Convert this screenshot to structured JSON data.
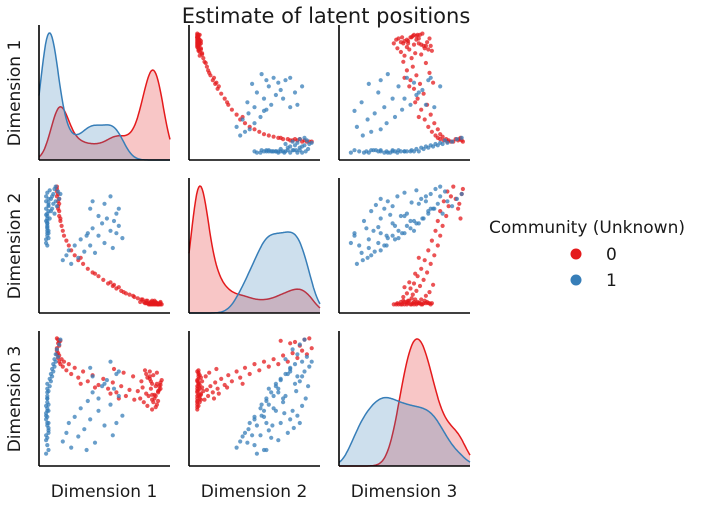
{
  "chart_data": {
    "type": "scatter",
    "title": "Estimate of latent positions",
    "variables": [
      "Dimension 1",
      "Dimension 2",
      "Dimension 3"
    ],
    "legend": {
      "title": "Community (Unknown)",
      "entries": [
        {
          "label": "0",
          "color": "#e41a1c"
        },
        {
          "label": "1",
          "color": "#377eb8"
        }
      ],
      "placement": "right"
    },
    "diagonal": "kde",
    "off_diagonal": "scatter",
    "axis_ranges": {
      "Dimension 1": [
        -0.05,
        1.05
      ],
      "Dimension 2": [
        -0.05,
        1.05
      ],
      "Dimension 3": [
        -0.05,
        1.05
      ]
    },
    "grid": false,
    "ticks": "none",
    "series": [
      {
        "name": "0",
        "color": "#e41a1c",
        "points": [
          [
            0.95,
            0.02,
            0.56
          ],
          [
            0.97,
            0.03,
            0.63
          ],
          [
            0.9,
            0.02,
            0.41
          ],
          [
            0.93,
            0.04,
            0.52
          ],
          [
            0.88,
            0.03,
            0.68
          ],
          [
            0.96,
            0.02,
            0.6
          ],
          [
            0.85,
            0.05,
            0.54
          ],
          [
            0.91,
            0.02,
            0.47
          ],
          [
            0.94,
            0.03,
            0.71
          ],
          [
            0.89,
            0.04,
            0.58
          ],
          [
            0.98,
            0.02,
            0.65
          ],
          [
            0.86,
            0.03,
            0.44
          ],
          [
            0.92,
            0.02,
            0.5
          ],
          [
            0.97,
            0.04,
            0.61
          ],
          [
            0.84,
            0.03,
            0.73
          ],
          [
            0.9,
            0.05,
            0.49
          ],
          [
            0.95,
            0.02,
            0.55
          ],
          [
            0.88,
            0.03,
            0.66
          ],
          [
            0.93,
            0.02,
            0.43
          ],
          [
            0.82,
            0.06,
            0.59
          ],
          [
            0.94,
            0.03,
            0.62
          ],
          [
            0.87,
            0.02,
            0.52
          ],
          [
            0.91,
            0.04,
            0.69
          ],
          [
            0.96,
            0.03,
            0.57
          ],
          [
            0.83,
            0.04,
            0.47
          ],
          [
            0.89,
            0.02,
            0.64
          ],
          [
            0.92,
            0.05,
            0.53
          ],
          [
            0.85,
            0.03,
            0.7
          ],
          [
            0.97,
            0.02,
            0.58
          ],
          [
            0.8,
            0.04,
            0.5
          ],
          [
            0.9,
            0.03,
            0.62
          ],
          [
            0.94,
            0.02,
            0.45
          ],
          [
            0.86,
            0.05,
            0.67
          ],
          [
            0.78,
            0.07,
            0.56
          ],
          [
            0.93,
            0.03,
            0.6
          ],
          [
            0.75,
            0.08,
            0.49
          ],
          [
            0.88,
            0.02,
            0.72
          ],
          [
            0.71,
            0.1,
            0.57
          ],
          [
            0.81,
            0.06,
            0.64
          ],
          [
            0.68,
            0.11,
            0.52
          ],
          [
            0.95,
            0.02,
            0.48
          ],
          [
            0.64,
            0.13,
            0.6
          ],
          [
            0.74,
            0.09,
            0.68
          ],
          [
            0.6,
            0.15,
            0.55
          ],
          [
            0.9,
            0.03,
            0.53
          ],
          [
            0.57,
            0.17,
            0.63
          ],
          [
            0.66,
            0.12,
            0.71
          ],
          [
            0.53,
            0.19,
            0.58
          ],
          [
            0.62,
            0.16,
            0.5
          ],
          [
            0.49,
            0.22,
            0.66
          ],
          [
            0.58,
            0.18,
            0.74
          ],
          [
            0.45,
            0.25,
            0.61
          ],
          [
            0.4,
            0.28,
            0.69
          ],
          [
            0.55,
            0.2,
            0.54
          ],
          [
            0.36,
            0.31,
            0.64
          ],
          [
            0.32,
            0.35,
            0.72
          ],
          [
            0.28,
            0.38,
            0.67
          ],
          [
            0.42,
            0.27,
            0.59
          ],
          [
            0.25,
            0.42,
            0.75
          ],
          [
            0.22,
            0.46,
            0.7
          ],
          [
            0.2,
            0.5,
            0.78
          ],
          [
            0.18,
            0.54,
            0.73
          ],
          [
            0.3,
            0.4,
            0.62
          ],
          [
            0.16,
            0.58,
            0.8
          ],
          [
            0.15,
            0.62,
            0.76
          ],
          [
            0.14,
            0.66,
            0.82
          ],
          [
            0.13,
            0.7,
            0.78
          ],
          [
            0.12,
            0.74,
            0.85
          ],
          [
            0.12,
            0.78,
            0.8
          ],
          [
            0.11,
            0.82,
            0.87
          ],
          [
            0.11,
            0.86,
            0.83
          ],
          [
            0.1,
            0.9,
            0.89
          ],
          [
            0.1,
            0.94,
            0.86
          ],
          [
            0.1,
            0.98,
            0.91
          ],
          [
            0.12,
            0.88,
            0.93
          ],
          [
            0.11,
            0.8,
            0.95
          ],
          [
            0.13,
            0.72,
            0.97
          ],
          [
            0.1,
            0.96,
            0.99
          ],
          [
            0.12,
            0.84,
            0.96
          ],
          [
            0.11,
            0.92,
            0.98
          ]
        ]
      },
      {
        "name": "1",
        "color": "#377eb8",
        "points": [
          [
            0.02,
            0.5,
            0.12
          ],
          [
            0.01,
            0.55,
            0.2
          ],
          [
            0.03,
            0.6,
            0.08
          ],
          [
            0.02,
            0.65,
            0.28
          ],
          [
            0.01,
            0.7,
            0.16
          ],
          [
            0.02,
            0.58,
            0.35
          ],
          [
            0.03,
            0.62,
            0.24
          ],
          [
            0.02,
            0.68,
            0.4
          ],
          [
            0.01,
            0.52,
            0.05
          ],
          [
            0.02,
            0.72,
            0.3
          ],
          [
            0.03,
            0.56,
            0.45
          ],
          [
            0.02,
            0.64,
            0.18
          ],
          [
            0.01,
            0.75,
            0.38
          ],
          [
            0.02,
            0.6,
            0.5
          ],
          [
            0.03,
            0.78,
            0.22
          ],
          [
            0.02,
            0.66,
            0.42
          ],
          [
            0.01,
            0.8,
            0.33
          ],
          [
            0.02,
            0.7,
            0.55
          ],
          [
            0.03,
            0.83,
            0.26
          ],
          [
            0.02,
            0.74,
            0.47
          ],
          [
            0.01,
            0.86,
            0.36
          ],
          [
            0.02,
            0.62,
            0.58
          ],
          [
            0.03,
            0.88,
            0.3
          ],
          [
            0.02,
            0.76,
            0.52
          ],
          [
            0.01,
            0.9,
            0.44
          ],
          [
            0.02,
            0.68,
            0.62
          ],
          [
            0.03,
            0.82,
            0.4
          ],
          [
            0.02,
            0.93,
            0.5
          ],
          [
            0.04,
            0.72,
            0.66
          ],
          [
            0.03,
            0.85,
            0.56
          ],
          [
            0.05,
            0.78,
            0.7
          ],
          [
            0.04,
            0.95,
            0.6
          ],
          [
            0.06,
            0.8,
            0.74
          ],
          [
            0.05,
            0.88,
            0.64
          ],
          [
            0.07,
            0.84,
            0.78
          ],
          [
            0.06,
            0.9,
            0.68
          ],
          [
            0.08,
            0.76,
            0.82
          ],
          [
            0.07,
            0.92,
            0.72
          ],
          [
            0.09,
            0.86,
            0.86
          ],
          [
            0.08,
            0.96,
            0.76
          ],
          [
            0.1,
            0.82,
            0.9
          ],
          [
            0.09,
            0.98,
            0.8
          ],
          [
            0.12,
            0.88,
            0.94
          ],
          [
            0.11,
            0.94,
            0.84
          ],
          [
            0.13,
            0.92,
            0.98
          ],
          [
            0.15,
            0.38,
            0.15
          ],
          [
            0.18,
            0.42,
            0.22
          ],
          [
            0.2,
            0.46,
            0.3
          ],
          [
            0.22,
            0.35,
            0.1
          ],
          [
            0.25,
            0.5,
            0.35
          ],
          [
            0.28,
            0.4,
            0.19
          ],
          [
            0.3,
            0.55,
            0.42
          ],
          [
            0.33,
            0.45,
            0.25
          ],
          [
            0.36,
            0.6,
            0.48
          ],
          [
            0.38,
            0.5,
            0.33
          ],
          [
            0.4,
            0.64,
            0.55
          ],
          [
            0.42,
            0.44,
            0.14
          ],
          [
            0.45,
            0.58,
            0.4
          ],
          [
            0.48,
            0.68,
            0.6
          ],
          [
            0.5,
            0.52,
            0.28
          ],
          [
            0.52,
            0.72,
            0.65
          ],
          [
            0.55,
            0.62,
            0.45
          ],
          [
            0.57,
            0.48,
            0.2
          ],
          [
            0.6,
            0.76,
            0.7
          ],
          [
            0.62,
            0.66,
            0.52
          ],
          [
            0.65,
            0.56,
            0.36
          ],
          [
            0.38,
            0.8,
            0.75
          ],
          [
            0.58,
            0.7,
            0.58
          ],
          [
            0.35,
            0.58,
            0.08
          ],
          [
            0.5,
            0.84,
            0.62
          ],
          [
            0.55,
            0.9,
            0.8
          ],
          [
            0.45,
            0.74,
            0.5
          ],
          [
            0.6,
            0.6,
            0.3
          ],
          [
            0.4,
            0.86,
            0.68
          ],
          [
            0.62,
            0.8,
            0.72
          ]
        ]
      }
    ]
  }
}
